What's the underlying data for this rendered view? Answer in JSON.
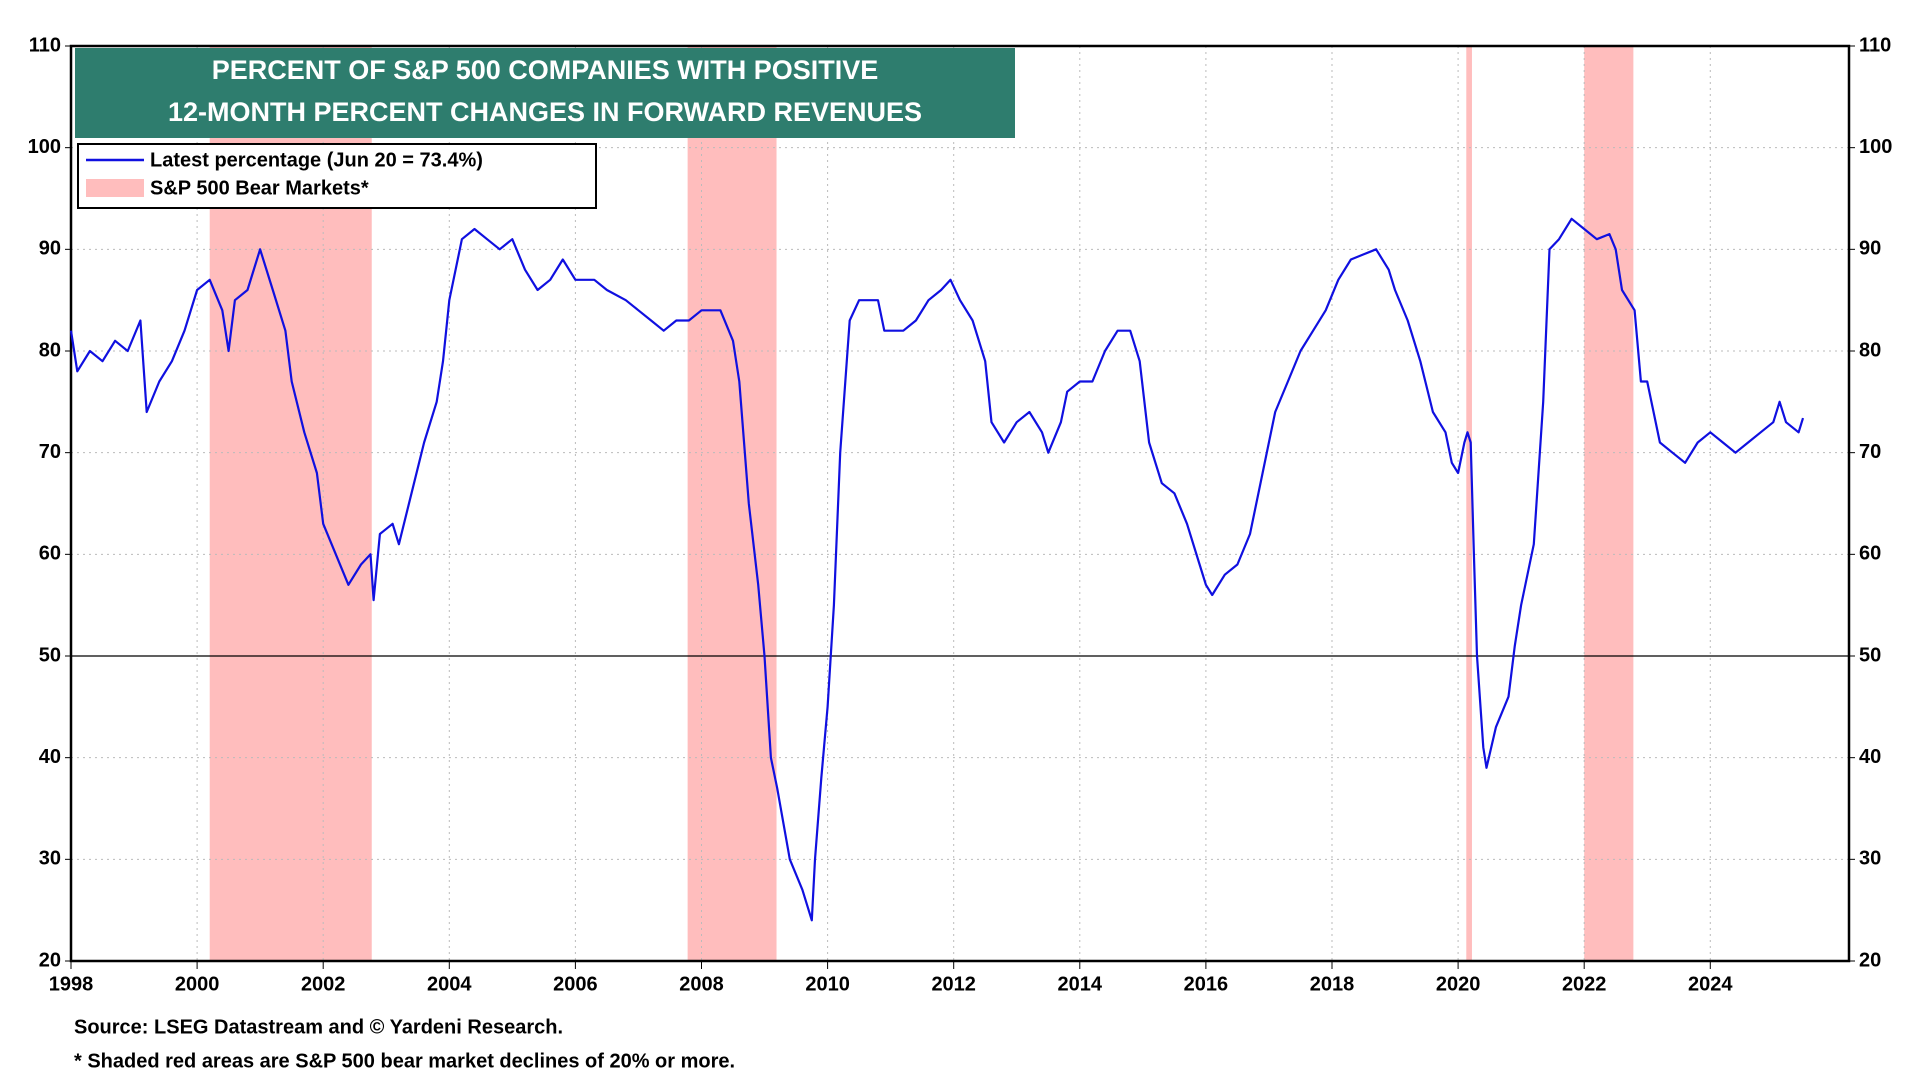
{
  "chart_data": {
    "type": "line",
    "title": "PERCENT OF S&P 500 COMPANIES WITH POSITIVE",
    "subtitle": "12-MONTH PERCENT CHANGES IN FORWARD REVENUES",
    "series": [
      {
        "name": "Latest percentage (Jun 20 = 73.4%)",
        "color": "#1010e0",
        "x": [
          1998.0,
          1998.1,
          1998.3,
          1998.5,
          1998.7,
          1998.9,
          1999.1,
          1999.2,
          1999.4,
          1999.6,
          1999.8,
          2000.0,
          2000.2,
          2000.4,
          2000.5,
          2000.6,
          2000.8,
          2001.0,
          2001.2,
          2001.4,
          2001.5,
          2001.7,
          2001.9,
          2002.0,
          2002.2,
          2002.4,
          2002.6,
          2002.75,
          2002.8,
          2002.9,
          2003.1,
          2003.2,
          2003.4,
          2003.6,
          2003.8,
          2003.9,
          2004.0,
          2004.2,
          2004.4,
          2004.6,
          2004.8,
          2005.0,
          2005.2,
          2005.4,
          2005.6,
          2005.8,
          2006.0,
          2006.3,
          2006.5,
          2006.8,
          2007.0,
          2007.2,
          2007.4,
          2007.6,
          2007.8,
          2008.0,
          2008.3,
          2008.5,
          2008.6,
          2008.75,
          2008.9,
          2009.0,
          2009.1,
          2009.2,
          2009.4,
          2009.6,
          2009.75,
          2009.8,
          2009.9,
          2010.0,
          2010.1,
          2010.2,
          2010.35,
          2010.5,
          2010.8,
          2010.9,
          2011.2,
          2011.4,
          2011.6,
          2011.8,
          2011.95,
          2012.1,
          2012.3,
          2012.5,
          2012.6,
          2012.8,
          2013.0,
          2013.2,
          2013.4,
          2013.5,
          2013.7,
          2013.8,
          2014.0,
          2014.2,
          2014.4,
          2014.6,
          2014.8,
          2014.95,
          2015.1,
          2015.3,
          2015.5,
          2015.7,
          2015.9,
          2016.0,
          2016.1,
          2016.3,
          2016.5,
          2016.7,
          2016.9,
          2017.1,
          2017.3,
          2017.5,
          2017.7,
          2017.9,
          2018.1,
          2018.3,
          2018.5,
          2018.7,
          2018.9,
          2019.0,
          2019.2,
          2019.4,
          2019.6,
          2019.8,
          2019.9,
          2020.0,
          2020.1,
          2020.15,
          2020.2,
          2020.25,
          2020.3,
          2020.4,
          2020.45,
          2020.6,
          2020.8,
          2020.9,
          2021.0,
          2021.2,
          2021.35,
          2021.45,
          2021.6,
          2021.8,
          2022.0,
          2022.2,
          2022.4,
          2022.5,
          2022.6,
          2022.8,
          2022.9,
          2023.0,
          2023.2,
          2023.4,
          2023.6,
          2023.8,
          2024.0,
          2024.2,
          2024.4,
          2024.6,
          2024.8,
          2025.0,
          2025.1,
          2025.2,
          2025.4,
          2025.47
        ],
        "values": [
          82,
          78,
          80,
          79,
          81,
          80,
          83,
          74,
          77,
          79,
          82,
          86,
          87,
          84,
          80,
          85,
          86,
          90,
          86,
          82,
          77,
          72,
          68,
          63,
          60,
          57,
          59,
          60,
          55.5,
          62,
          63,
          61,
          66,
          71,
          75,
          79,
          85,
          91,
          92,
          91,
          90,
          91,
          88,
          86,
          87,
          89,
          87,
          87,
          86,
          85,
          84,
          83,
          82,
          83,
          83,
          84,
          84,
          81,
          77,
          65,
          57,
          50,
          40,
          37,
          30,
          27,
          24,
          30,
          38,
          45,
          55,
          70,
          83,
          85,
          85,
          82,
          82,
          83,
          85,
          86,
          87,
          85,
          83,
          79,
          73,
          71,
          73,
          74,
          72,
          70,
          73,
          76,
          77,
          77,
          80,
          82,
          82,
          79,
          71,
          67,
          66,
          63,
          59,
          57,
          56,
          58,
          59,
          62,
          68,
          74,
          77,
          80,
          82,
          84,
          87,
          89,
          89.5,
          90,
          88,
          86,
          83,
          79,
          74,
          72,
          69,
          68,
          71,
          72,
          71,
          60,
          50,
          41,
          39,
          43,
          46,
          51,
          55,
          61,
          75,
          90,
          91,
          93,
          92,
          91,
          91.5,
          90,
          86,
          84,
          77,
          77,
          71,
          70,
          69,
          71,
          72,
          71,
          70,
          71,
          72,
          73,
          75,
          73,
          72,
          73.4
        ]
      }
    ],
    "shaded_regions": {
      "name": "S&P 500 Bear Markets*",
      "color": "#ffbdbd",
      "ranges": [
        [
          2000.2,
          2002.77
        ],
        [
          2007.78,
          2009.19
        ],
        [
          2020.13,
          2020.22
        ],
        [
          2022.0,
          2022.78
        ]
      ]
    },
    "reference_line": 50,
    "xlim": [
      1998,
      2026.2
    ],
    "xticks": [
      1998,
      2000,
      2002,
      2004,
      2006,
      2008,
      2010,
      2012,
      2014,
      2016,
      2018,
      2020,
      2022,
      2024
    ],
    "ylim": [
      20,
      110
    ],
    "yticks": [
      20,
      30,
      40,
      50,
      60,
      70,
      80,
      90,
      100,
      110
    ],
    "grid": true,
    "notes": [
      "Source: LSEG Datastream and © Yardeni Research.",
      "* Shaded red areas are S&P 500 bear market declines of 20% or more."
    ]
  }
}
